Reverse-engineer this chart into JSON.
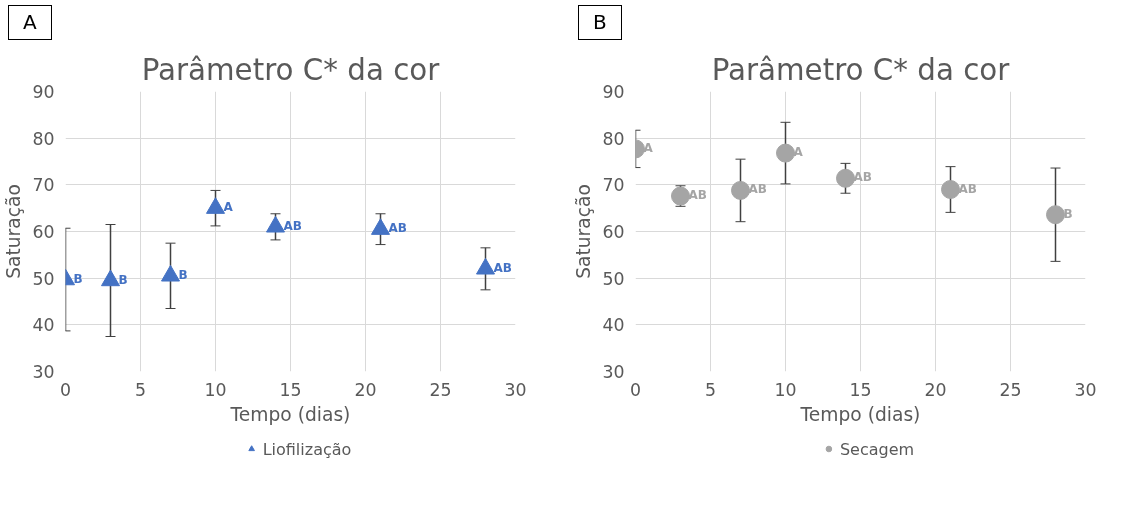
{
  "chart_data": [
    {
      "type": "scatter",
      "title": "Parâmetro C* da cor",
      "xlabel": "Tempo (dias)",
      "ylabel": "Saturação",
      "annotations": [
        "A"
      ],
      "x": [
        0,
        3,
        7,
        10,
        14,
        21,
        28
      ],
      "series": [
        {
          "name": "Liofilização",
          "color": "#4472c4",
          "values": [
            49.7,
            49.5,
            50.5,
            65,
            61,
            60.5,
            52
          ],
          "errors": [
            11,
            12,
            7,
            3.8,
            2.8,
            3.3,
            4.5
          ],
          "value_labels": [
            "B",
            "B",
            "B",
            "A",
            "AB",
            "AB",
            "AB"
          ]
        }
      ],
      "xlim": [
        0,
        30
      ],
      "xticks": [
        0,
        5,
        10,
        15,
        20,
        25,
        30
      ],
      "ylim": [
        30,
        90
      ],
      "yticks": [
        30,
        40,
        50,
        60,
        70,
        80,
        90
      ],
      "grid": true,
      "legend": "bottom",
      "marker": "triangle"
    },
    {
      "type": "scatter",
      "title": "Parâmetro C* da cor",
      "xlabel": "Tempo (dias)",
      "ylabel": "Saturação",
      "annotations": [
        "B"
      ],
      "x": [
        0,
        3,
        7,
        10,
        14,
        21,
        28
      ],
      "series": [
        {
          "name": "Secagem",
          "color": "#a5a5a5",
          "values": [
            77.7,
            67.6,
            68.8,
            76.8,
            71.4,
            69,
            63.6
          ],
          "errors": [
            4,
            2.2,
            6.7,
            6.6,
            3.2,
            4.9,
            10
          ],
          "value_labels": [
            "A",
            "AB",
            "AB",
            "A",
            "AB",
            "AB",
            "B"
          ]
        }
      ],
      "xlim": [
        0,
        30
      ],
      "xticks": [
        0,
        5,
        10,
        15,
        20,
        25,
        30
      ],
      "ylim": [
        30,
        90
      ],
      "yticks": [
        30,
        40,
        50,
        60,
        70,
        80,
        90
      ],
      "grid": true,
      "legend": "bottom",
      "marker": "circle"
    }
  ]
}
